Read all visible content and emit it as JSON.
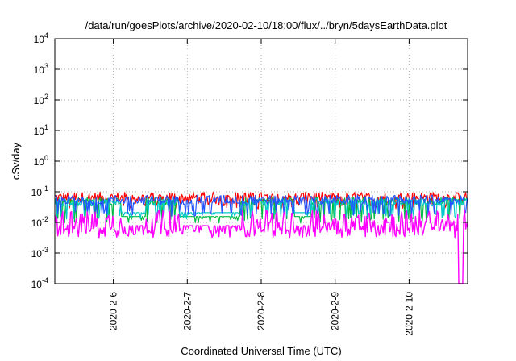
{
  "chart_data": {
    "type": "line",
    "title": "/data/run/goesPlots/archive/2020-02-10/18:00/flux/../bryn/5daysEarthData.plot",
    "xlabel": "Coordinated Universal Time (UTC)",
    "ylabel": "cSv/day",
    "yscale": "log",
    "ylim": [
      0.0001,
      10000
    ],
    "y_ticks": [
      {
        "value": 0.0001,
        "base": "10",
        "exp": "-4"
      },
      {
        "value": 0.001,
        "base": "10",
        "exp": "-3"
      },
      {
        "value": 0.01,
        "base": "10",
        "exp": "-2"
      },
      {
        "value": 0.1,
        "base": "10",
        "exp": "-1"
      },
      {
        "value": 1,
        "base": "10",
        "exp": "0"
      },
      {
        "value": 10,
        "base": "10",
        "exp": "1"
      },
      {
        "value": 100,
        "base": "10",
        "exp": "2"
      },
      {
        "value": 1000,
        "base": "10",
        "exp": "3"
      },
      {
        "value": 10000,
        "base": "10",
        "exp": "4"
      }
    ],
    "x_ticks": [
      {
        "date": "2020-02-06",
        "label": "2020-2-6"
      },
      {
        "date": "2020-02-07",
        "label": "2020-2-7"
      },
      {
        "date": "2020-02-08",
        "label": "2020-2-8"
      },
      {
        "date": "2020-02-09",
        "label": "2020-2-9"
      },
      {
        "date": "2020-02-10",
        "label": "2020-2-10"
      }
    ],
    "xlim": [
      "2020-02-05T05:00",
      "2020-02-10T19:00"
    ],
    "grid": true,
    "series": [
      {
        "color": "#ff0000",
        "level": 0.065,
        "low": 0.035,
        "noise": 0.35
      },
      {
        "color": "#00bb44",
        "level": 0.05,
        "low": 0.012,
        "noise": 0.25
      },
      {
        "color": "#00c8c8",
        "level": 0.045,
        "low": 0.016,
        "noise": 0.25
      },
      {
        "color": "#2255ff",
        "level": 0.055,
        "low": 0.02,
        "noise": 0.3
      },
      {
        "color": "#ff00ff",
        "level": 0.009,
        "low": 0.006,
        "noise": 0.9
      }
    ]
  }
}
